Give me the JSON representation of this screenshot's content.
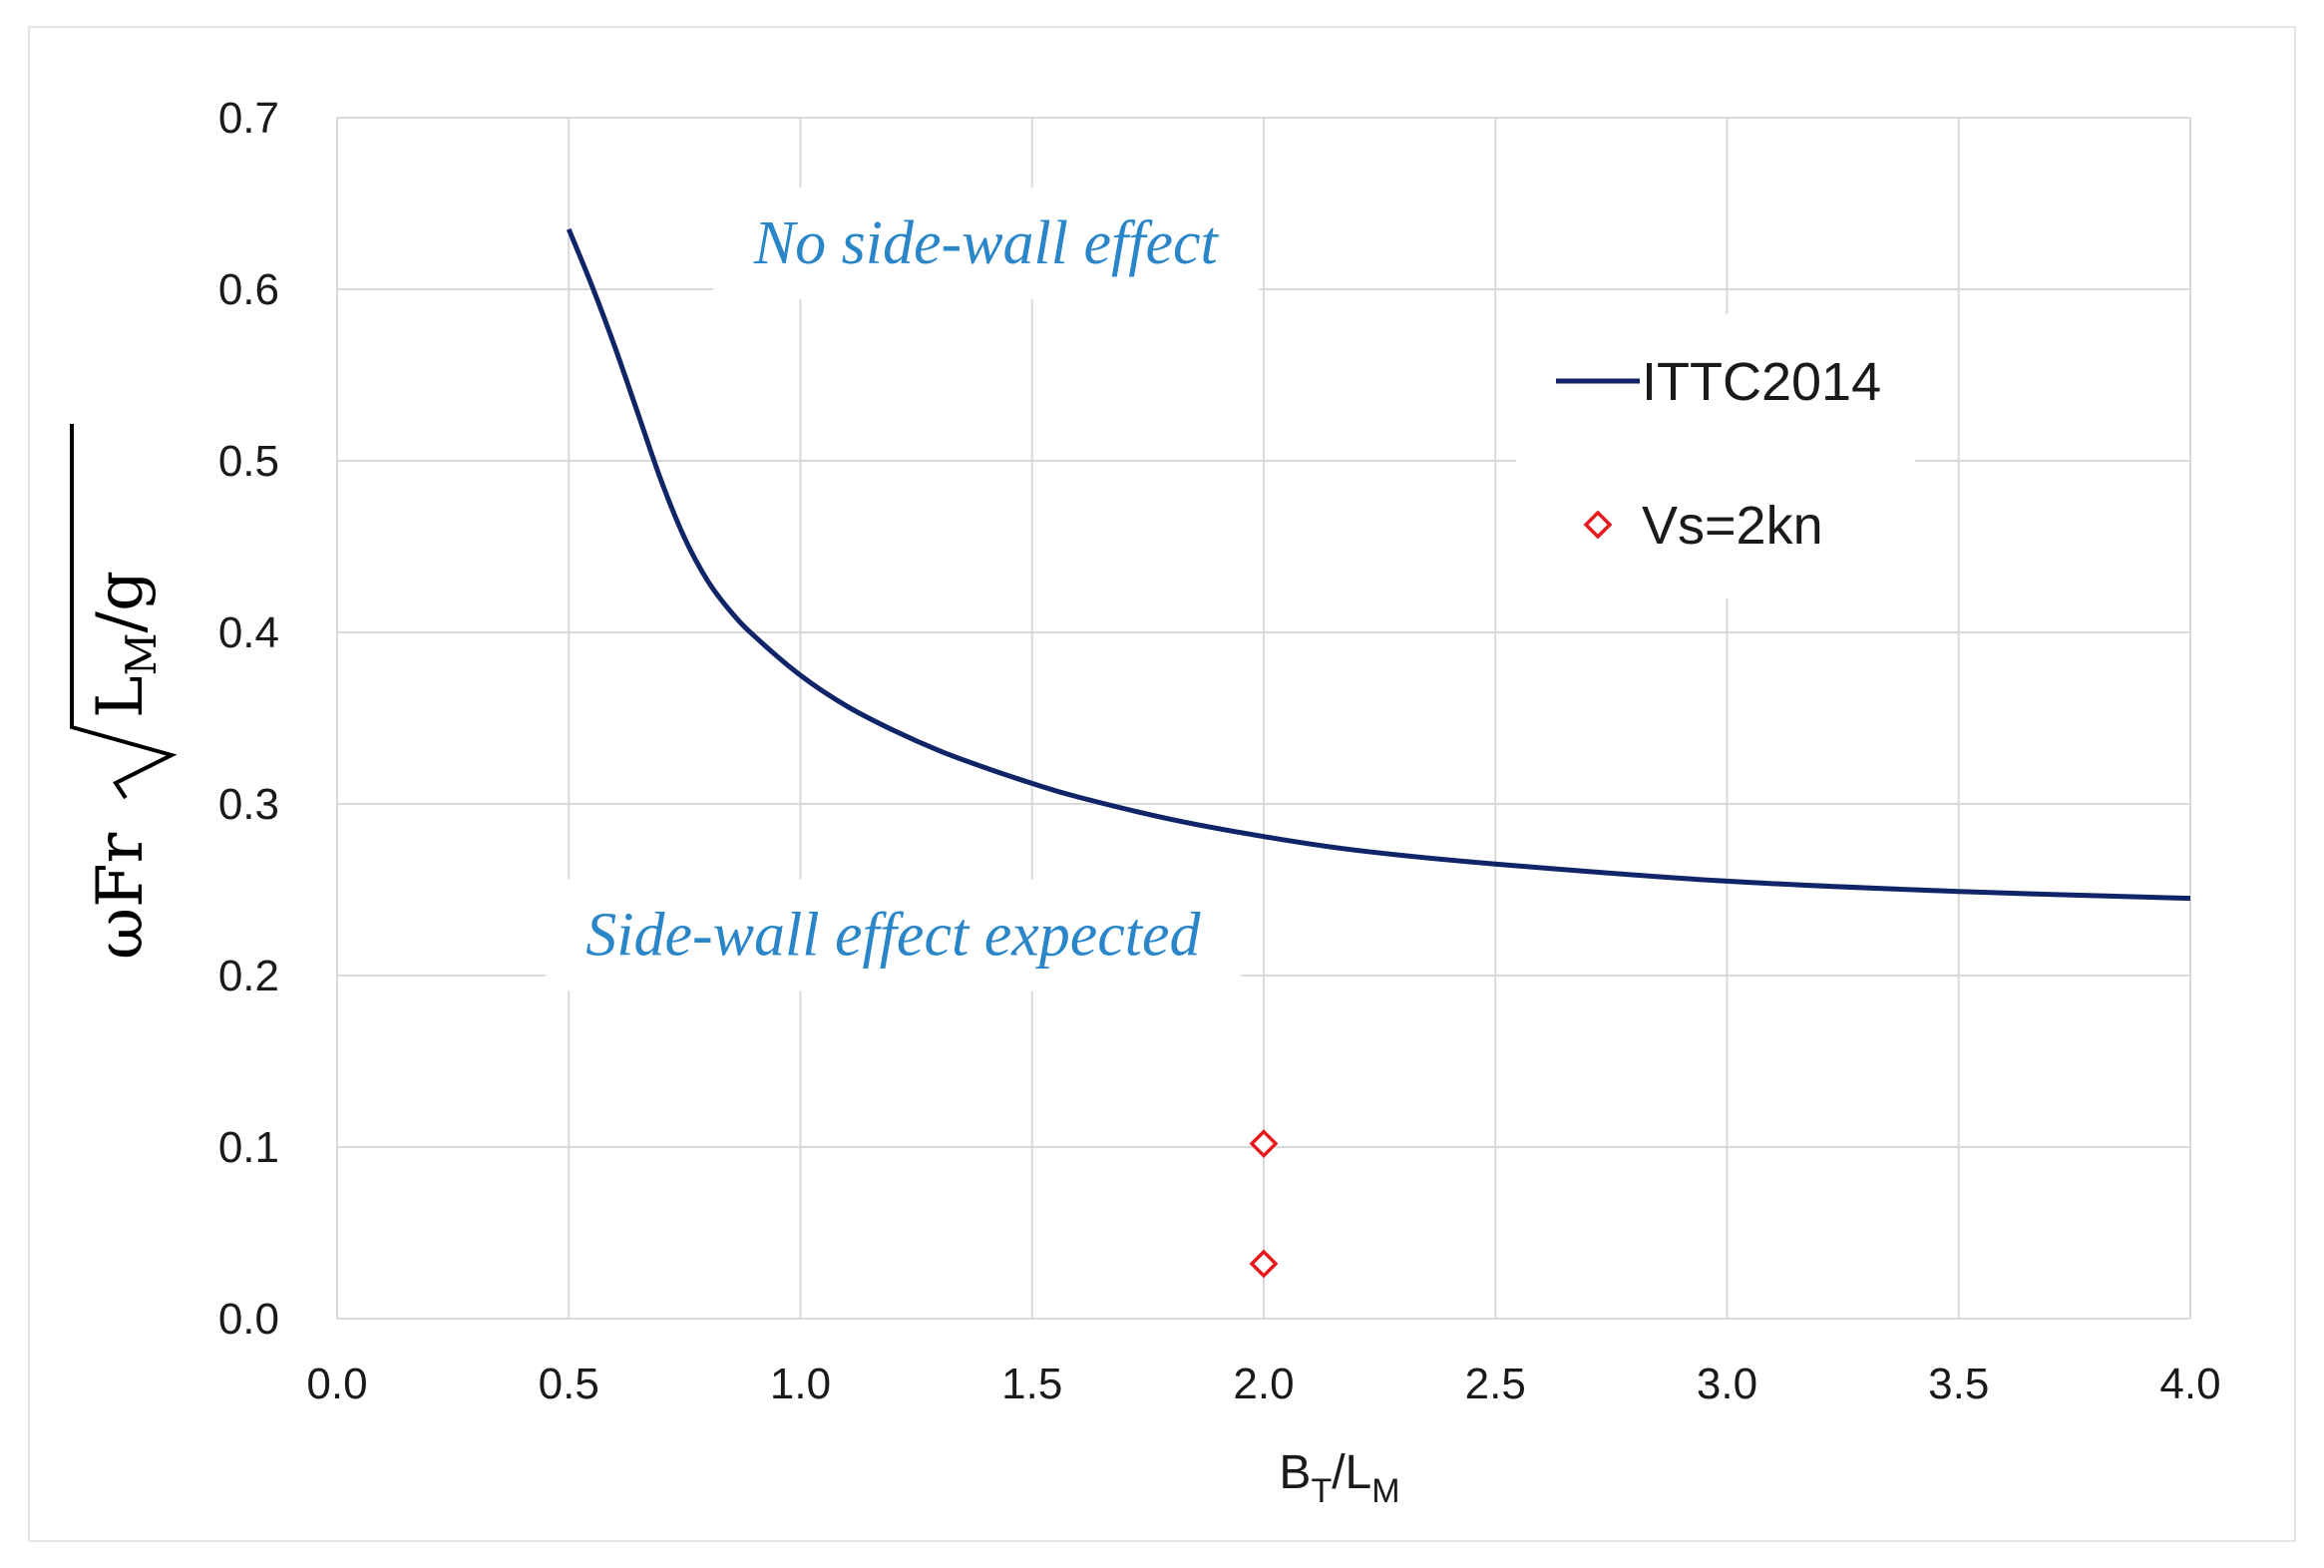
{
  "chart_data": {
    "type": "line",
    "xlim": [
      0.0,
      4.0
    ],
    "ylim": [
      0.0,
      0.7
    ],
    "x_ticks": [
      "0.0",
      "0.5",
      "1.0",
      "1.5",
      "2.0",
      "2.5",
      "3.0",
      "3.5",
      "4.0"
    ],
    "y_ticks": [
      "0.0",
      "0.1",
      "0.2",
      "0.3",
      "0.4",
      "0.5",
      "0.6",
      "0.7"
    ],
    "xlabel": {
      "base": "B",
      "sub1": "T",
      "mid": "/L",
      "sub2": "M"
    },
    "ylabel": {
      "prefix": "ωFr",
      "sqrt_base": "L",
      "sqrt_sub": "M",
      "suffix": "/g"
    },
    "grid": true,
    "legend_position": "top-right inside plot",
    "annotations": [
      {
        "text": "No side-wall effect",
        "x": 1.4,
        "y": 0.615
      },
      {
        "text": "Side-wall effect expected",
        "x": 1.2,
        "y": 0.212
      }
    ],
    "series": [
      {
        "name": "ITTC2014",
        "type": "line",
        "color": "#0f2568",
        "x": [
          0.5,
          0.55,
          0.6,
          0.65,
          0.7,
          0.75,
          0.8,
          0.85,
          0.9,
          1.0,
          1.1,
          1.2,
          1.3,
          1.4,
          1.5,
          1.6,
          1.8,
          2.0,
          2.2,
          2.5,
          3.0,
          3.5,
          4.0
        ],
        "y": [
          0.635,
          0.602,
          0.566,
          0.527,
          0.488,
          0.455,
          0.43,
          0.412,
          0.398,
          0.375,
          0.357,
          0.343,
          0.331,
          0.321,
          0.312,
          0.304,
          0.291,
          0.281,
          0.273,
          0.265,
          0.255,
          0.249,
          0.245
        ]
      },
      {
        "name": "Vs=2kn",
        "type": "scatter",
        "marker": "diamond-open",
        "color": "#e8191c",
        "x": [
          2.0,
          2.0
        ],
        "y": [
          0.102,
          0.032
        ]
      }
    ]
  }
}
